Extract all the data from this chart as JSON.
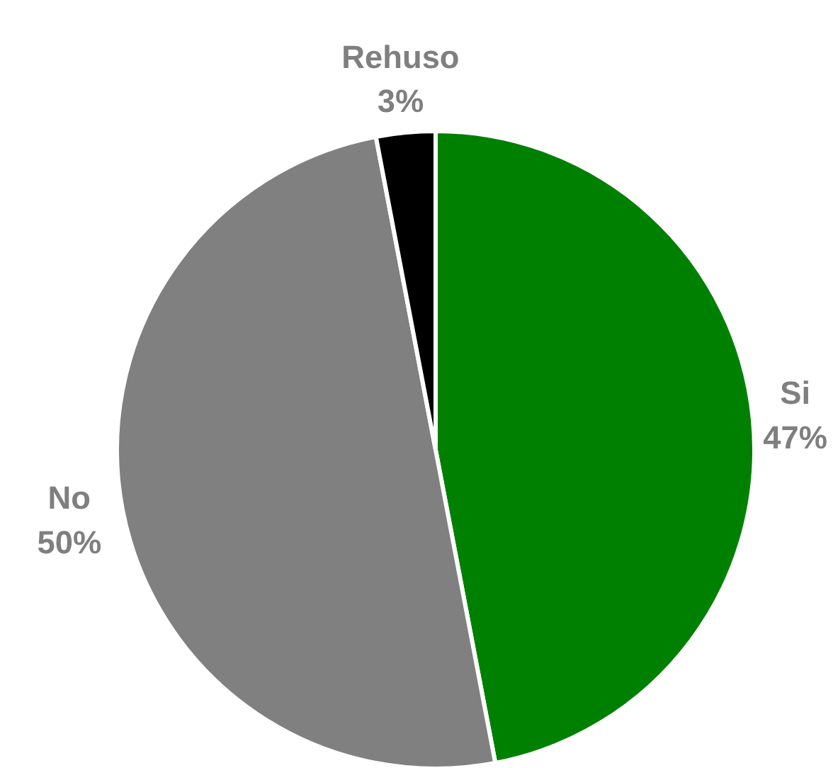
{
  "chart_data": {
    "type": "pie",
    "categories": [
      "Si",
      "No",
      "Rehuso"
    ],
    "values": [
      47,
      50,
      3
    ],
    "colors": [
      "#008000",
      "#808080",
      "#000000"
    ],
    "value_labels": [
      "47%",
      "50%",
      "3%"
    ]
  }
}
